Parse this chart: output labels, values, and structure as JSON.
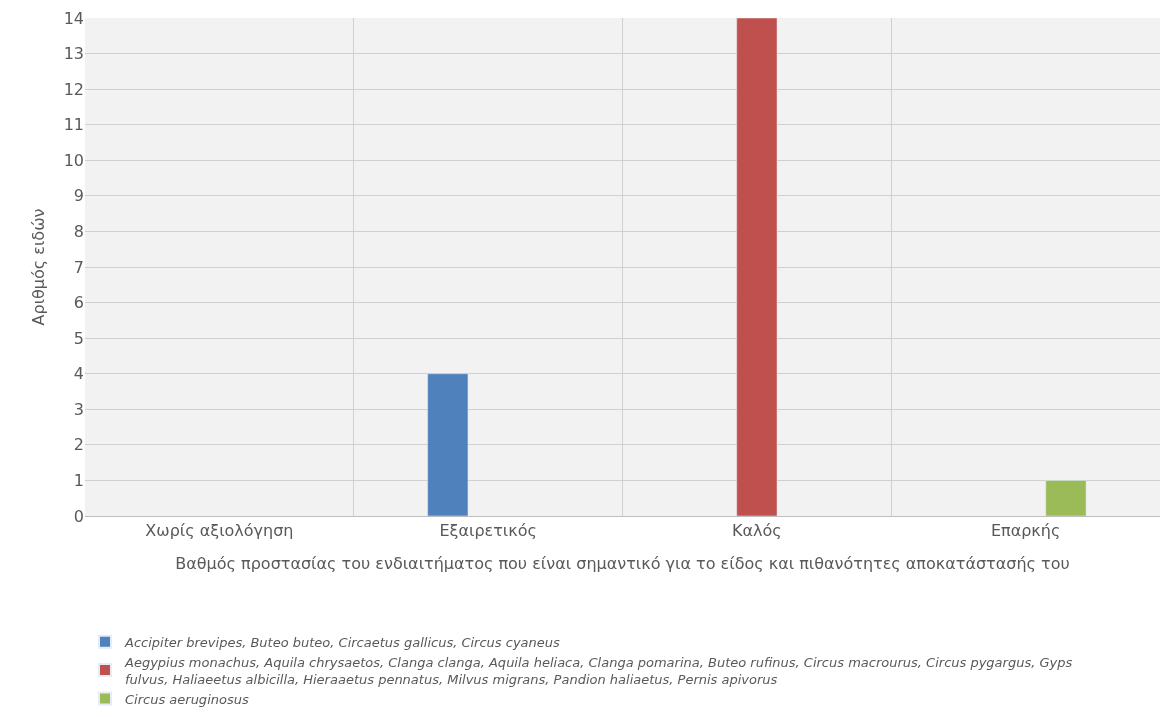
{
  "chart_data": {
    "type": "bar",
    "xlabel": "Βαθμός προστασίας του ενδιαιτήματος που είναι σημαντικό για το είδος και πιθανότητες αποκατάστασής του",
    "ylabel": "Αριθμός ειδών",
    "categories": [
      "Χωρίς αξιολόγηση",
      "Εξαιρετικός",
      "Καλός",
      "Επαρκής"
    ],
    "series": [
      {
        "name": "Accipiter brevipes, Buteo buteo, Circaetus gallicus, Circus cyaneus",
        "color": "#4f81bd",
        "values": [
          null,
          4,
          null,
          null
        ]
      },
      {
        "name": "Aegypius monachus, Aquila chrysaetos, Clanga clanga, Aquila heliaca, Clanga pomarina, Buteo rufinus, Circus macrourus, Circus pygargus, Gyps fulvus, Haliaeetus albicilla, Hieraaetus pennatus, Milvus migrans, Pandion haliaetus, Pernis apivorus",
        "color": "#c0504d",
        "values": [
          null,
          null,
          14,
          null
        ]
      },
      {
        "name": "Circus aeruginosus",
        "color": "#9bbb59",
        "values": [
          null,
          null,
          null,
          1
        ]
      }
    ],
    "ylim": [
      0,
      14
    ],
    "yticks": [
      0,
      1,
      2,
      3,
      4,
      5,
      6,
      7,
      8,
      9,
      10,
      11,
      12,
      13,
      14
    ],
    "grid": true,
    "legend": "bottom"
  }
}
